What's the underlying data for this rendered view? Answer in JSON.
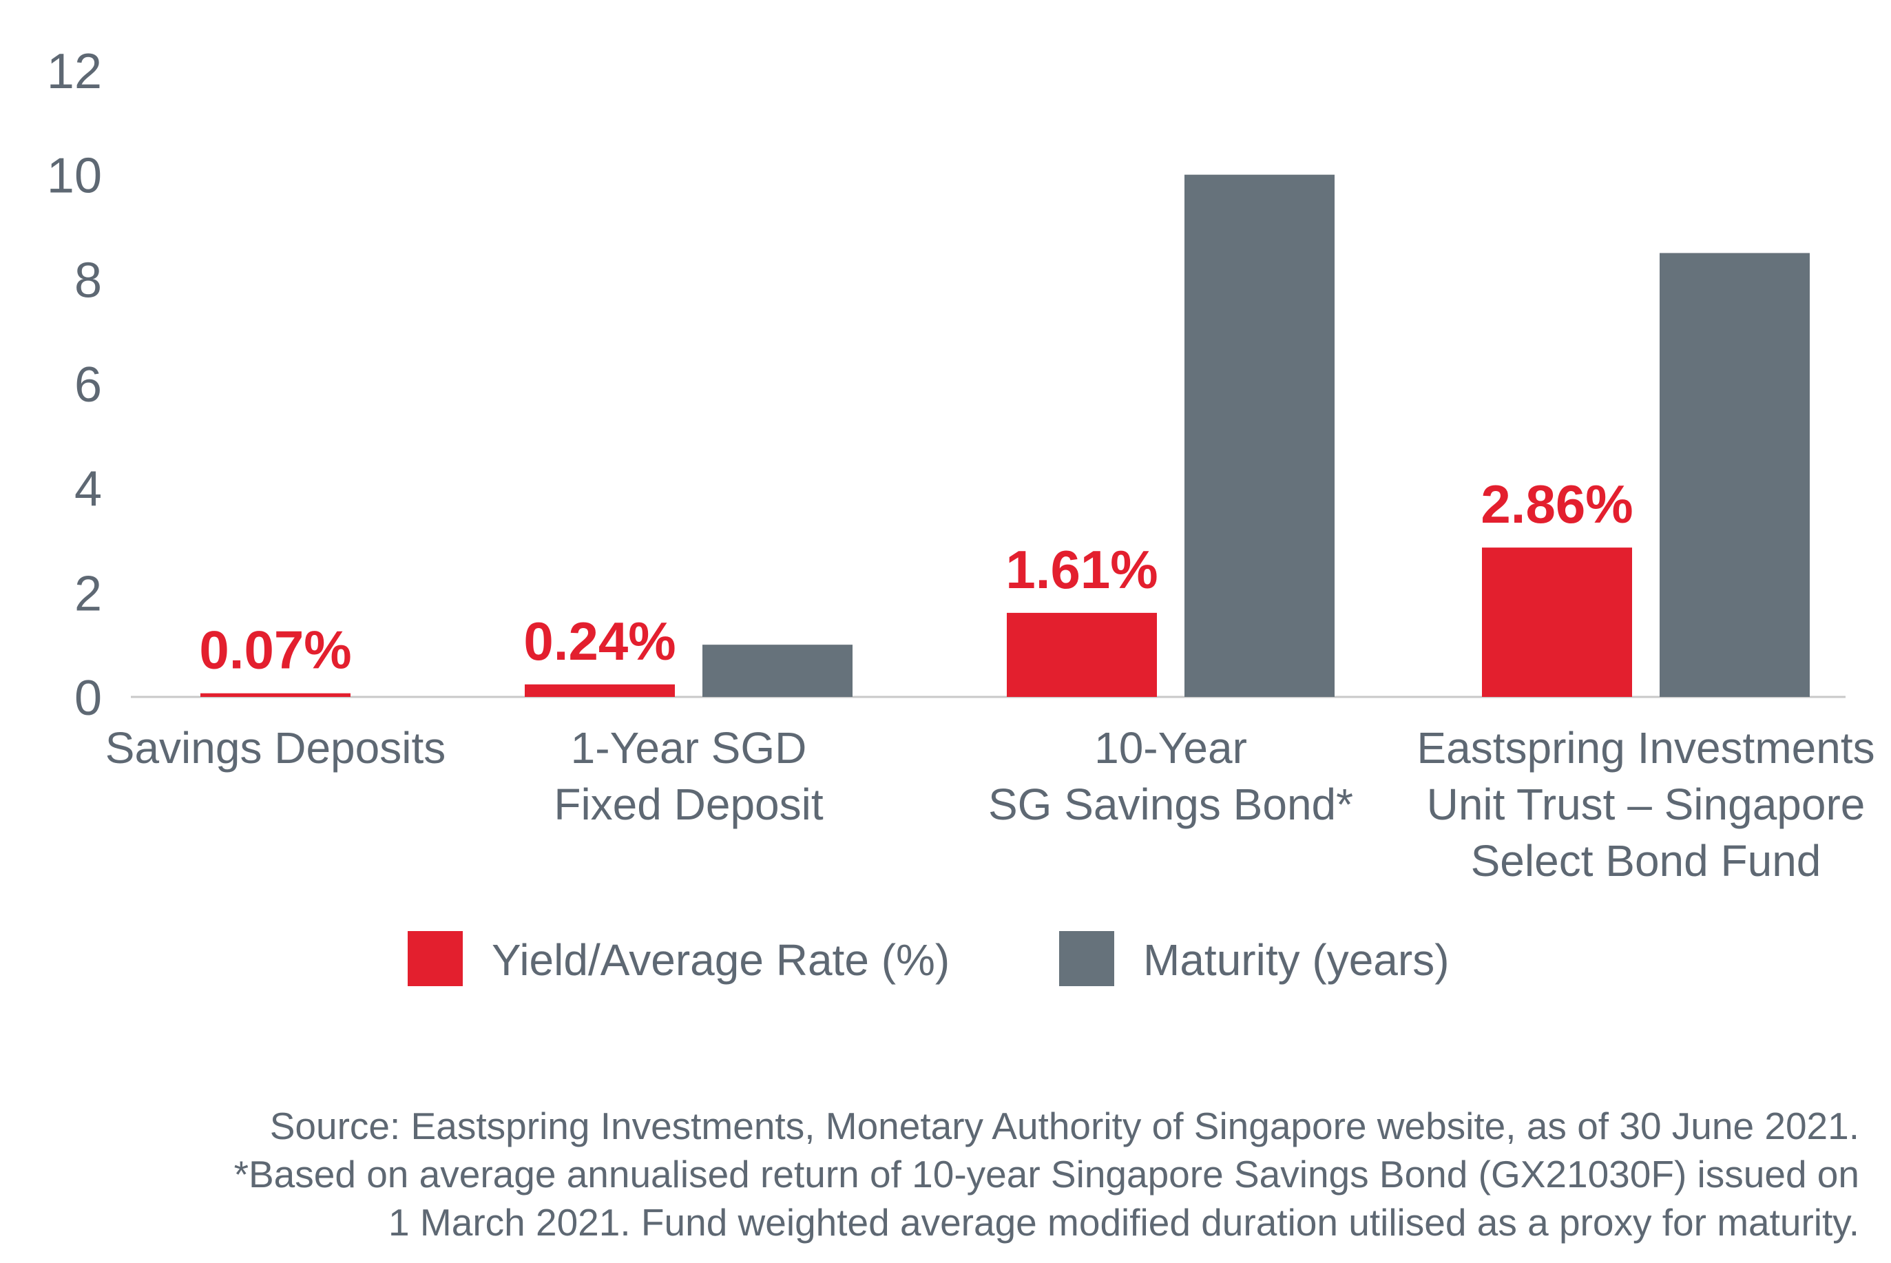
{
  "chart_data": {
    "type": "bar",
    "categories": [
      [
        "Savings Deposits"
      ],
      [
        "1-Year SGD",
        "Fixed Deposit"
      ],
      [
        "10-Year",
        "SG Savings Bond*"
      ],
      [
        "Eastspring Investments",
        "Unit Trust – Singapore",
        "Select Bond Fund"
      ]
    ],
    "series": [
      {
        "name": "Yield/Average Rate (%)",
        "color": "#e31f2e",
        "values": [
          0.07,
          0.24,
          1.61,
          2.86
        ],
        "data_labels": [
          "0.07%",
          "0.24%",
          "1.61%",
          "2.86%"
        ]
      },
      {
        "name": "Maturity (years)",
        "color": "#66727b",
        "values": [
          null,
          1,
          10,
          8.5
        ]
      }
    ],
    "ylim": [
      0,
      12
    ],
    "yticks": [
      "0",
      "2",
      "4",
      "6",
      "8",
      "10",
      "12"
    ],
    "grid": false,
    "legend": "bottom-center"
  },
  "source": {
    "lines": [
      "Source: Eastspring Investments, Monetary Authority of Singapore website, as of 30 June 2021.",
      "*Based on average annualised return of 10-year Singapore Savings Bond (GX21030F) issued on",
      "1 March 2021. Fund weighted average modified duration utilised as a proxy for maturity."
    ]
  }
}
